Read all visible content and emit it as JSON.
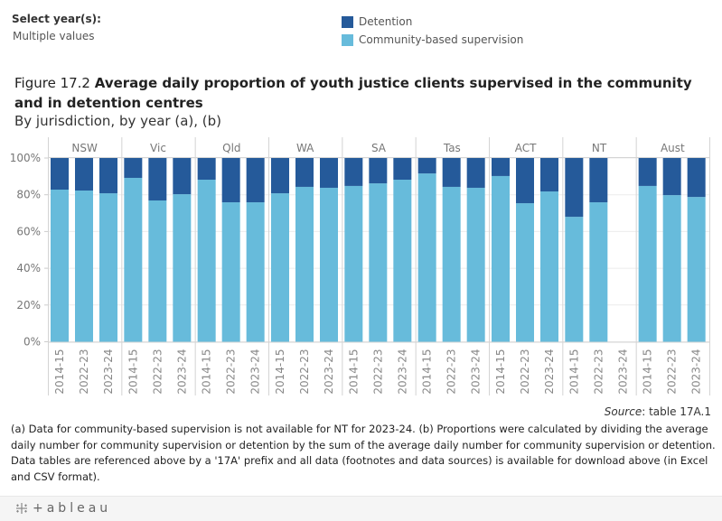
{
  "filter": {
    "label": "Select year(s):",
    "value": "Multiple values"
  },
  "legend": [
    {
      "label": "Detention",
      "color": "#255a9a"
    },
    {
      "label": "Community-based supervision",
      "color": "#67bbdb"
    }
  ],
  "title": {
    "figure_number": "Figure 17.2",
    "text": "Average daily proportion of youth justice clients supervised in the community and in detention centres",
    "subtitle": "By jurisdiction, by year (a), (b)"
  },
  "chart_data": {
    "type": "bar",
    "stacked": true,
    "title": "Average daily proportion of youth justice clients supervised in the community and in detention centres",
    "xlabel": "",
    "ylabel": "",
    "ylim": [
      0,
      100
    ],
    "yticks": [
      0,
      20,
      40,
      60,
      80,
      100
    ],
    "ytick_labels": [
      "0%",
      "20%",
      "40%",
      "60%",
      "80%",
      "100%"
    ],
    "grid": true,
    "legend_position": "top",
    "panels": [
      "NSW",
      "Vic",
      "Qld",
      "WA",
      "SA",
      "Tas",
      "ACT",
      "NT",
      "Aust"
    ],
    "categories": [
      "2014-15",
      "2022-23",
      "2023-24"
    ],
    "series": [
      {
        "name": "Community-based supervision",
        "color": "#67bbdb",
        "values": {
          "NSW": [
            82.8,
            82.3,
            80.8
          ],
          "Vic": [
            89.2,
            76.9,
            80.3
          ],
          "Qld": [
            88.2,
            75.9,
            75.9
          ],
          "WA": [
            80.8,
            84.3,
            83.8
          ],
          "SA": [
            84.8,
            86.2,
            88.2
          ],
          "Tas": [
            91.6,
            84.3,
            83.8
          ],
          "ACT": [
            90.2,
            75.4,
            81.8
          ],
          "NT": [
            68.0,
            75.9,
            null
          ],
          "Aust": [
            84.8,
            79.8,
            78.8
          ]
        }
      },
      {
        "name": "Detention",
        "color": "#255a9a",
        "values": {
          "NSW": [
            17.2,
            17.7,
            19.2
          ],
          "Vic": [
            10.8,
            23.1,
            19.7
          ],
          "Qld": [
            11.8,
            24.1,
            24.1
          ],
          "WA": [
            19.2,
            15.7,
            16.2
          ],
          "SA": [
            15.2,
            13.8,
            11.8
          ],
          "Tas": [
            8.4,
            15.7,
            16.2
          ],
          "ACT": [
            9.8,
            24.6,
            18.2
          ],
          "NT": [
            32.0,
            24.1,
            null
          ],
          "Aust": [
            15.2,
            20.2,
            21.2
          ]
        }
      }
    ]
  },
  "source": {
    "label": "Source",
    "text": ": table 17A.1"
  },
  "notes": "(a) Data for community-based supervision is not available for NT for 2023-24. (b) Proportions were calculated by dividing the average daily number for community supervision or detention by the sum of the average daily number for community supervision or detention. Data tables are referenced above by a '17A' prefix and all data (footnotes and data sources) is available for download above (in Excel and CSV format).",
  "footer": {
    "brand": "+ableau"
  }
}
